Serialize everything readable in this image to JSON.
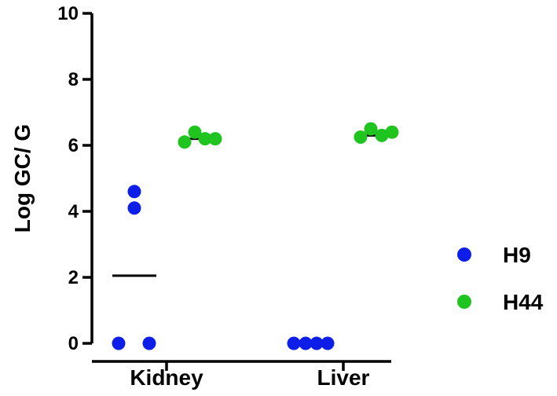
{
  "chart_data": {
    "type": "scatter",
    "ylabel": "Log GC/ G",
    "xlabel": "",
    "ylim": [
      0,
      10
    ],
    "yticks": [
      "0",
      "2",
      "4",
      "6",
      "8",
      "10"
    ],
    "categories": [
      "Kidney",
      "Liver"
    ],
    "legend_position": "right",
    "series": [
      {
        "name": "H9",
        "color": "#0d1ee8",
        "groups": [
          {
            "category": "Kidney",
            "values": [
              0,
              4.6,
              4.1,
              0
            ],
            "median": 2.05
          },
          {
            "category": "Liver",
            "values": [
              0,
              0,
              0,
              0
            ],
            "median": 0
          }
        ]
      },
      {
        "name": "H44",
        "color": "#1fc41f",
        "groups": [
          {
            "category": "Kidney",
            "values": [
              6.1,
              6.4,
              6.2,
              6.2
            ],
            "median": 6.2
          },
          {
            "category": "Liver",
            "values": [
              6.25,
              6.5,
              6.3,
              6.4
            ],
            "median": 6.3
          }
        ]
      }
    ]
  }
}
